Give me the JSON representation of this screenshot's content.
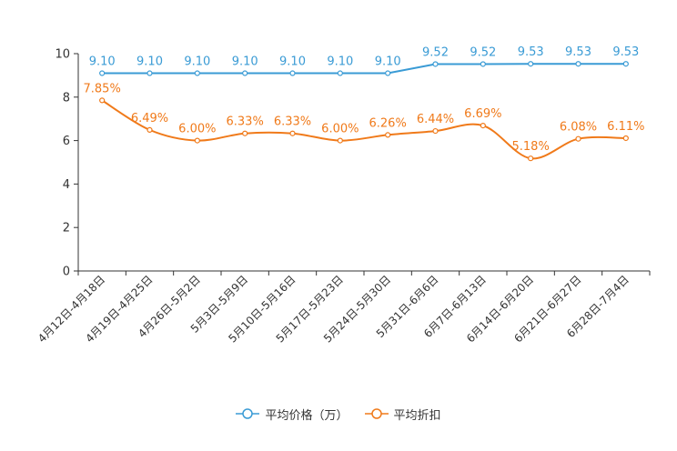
{
  "chart_data": {
    "type": "line",
    "title": "",
    "xlabel": "",
    "ylabel": "",
    "ylim": [
      0,
      10
    ],
    "yticks": [
      0,
      2,
      4,
      6,
      8,
      10
    ],
    "grid": false,
    "legend_position": "bottom-center",
    "categories": [
      "4月12日-4月18日",
      "4月19日-4月25日",
      "4月26日-5月2日",
      "5月3日-5月9日",
      "5月10日-5月16日",
      "5月17日-5月23日",
      "5月24日-5月30日",
      "5月31日-6月6日",
      "6月7日-6月13日",
      "6月14日-6月20日",
      "6月21日-6月27日",
      "6月28日-7月4日"
    ],
    "series": [
      {
        "name": "平均价格（万）",
        "color": "#3a9bd5",
        "smooth": false,
        "values": [
          9.1,
          9.1,
          9.1,
          9.1,
          9.1,
          9.1,
          9.1,
          9.52,
          9.52,
          9.53,
          9.53,
          9.53
        ],
        "labels": [
          "9.10",
          "9.10",
          "9.10",
          "9.10",
          "9.10",
          "9.10",
          "9.10",
          "9.52",
          "9.52",
          "9.53",
          "9.53",
          "9.53"
        ]
      },
      {
        "name": "平均折扣",
        "color": "#f07a1a",
        "smooth": true,
        "values": [
          7.85,
          6.49,
          6.0,
          6.33,
          6.33,
          6.0,
          6.26,
          6.44,
          6.69,
          5.18,
          6.08,
          6.11
        ],
        "labels": [
          "7.85%",
          "6.49%",
          "6.00%",
          "6.33%",
          "6.33%",
          "6.00%",
          "6.26%",
          "6.44%",
          "6.69%",
          "5.18%",
          "6.08%",
          "6.11%"
        ]
      }
    ]
  }
}
